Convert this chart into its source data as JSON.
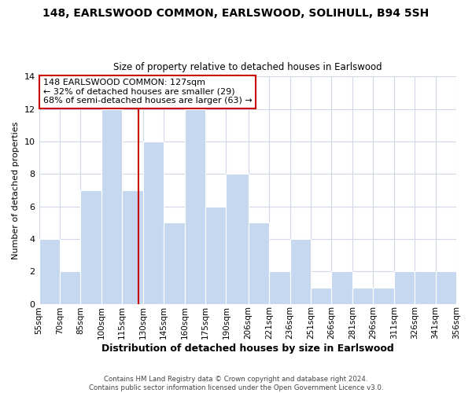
{
  "title": "148, EARLSWOOD COMMON, EARLSWOOD, SOLIHULL, B94 5SH",
  "subtitle": "Size of property relative to detached houses in Earlswood",
  "xlabel": "Distribution of detached houses by size in Earlswood",
  "ylabel": "Number of detached properties",
  "bar_edges": [
    55,
    70,
    85,
    100,
    115,
    130,
    145,
    160,
    175,
    190,
    206,
    221,
    236,
    251,
    266,
    281,
    296,
    311,
    326,
    341,
    356
  ],
  "bar_heights": [
    4,
    2,
    7,
    12,
    7,
    10,
    5,
    12,
    6,
    8,
    5,
    2,
    4,
    1,
    2,
    1,
    1,
    2,
    2,
    2
  ],
  "bar_color": "#c5d8f0",
  "bar_edge_color": "#ffffff",
  "property_line_x": 127,
  "property_line_color": "#cc0000",
  "annotation_text": "148 EARLSWOOD COMMON: 127sqm\n← 32% of detached houses are smaller (29)\n68% of semi-detached houses are larger (63) →",
  "annotation_box_color": "#ffffff",
  "annotation_box_edge_color": "#cc0000",
  "tick_labels": [
    "55sqm",
    "70sqm",
    "85sqm",
    "100sqm",
    "115sqm",
    "130sqm",
    "145sqm",
    "160sqm",
    "175sqm",
    "190sqm",
    "206sqm",
    "221sqm",
    "236sqm",
    "251sqm",
    "266sqm",
    "281sqm",
    "296sqm",
    "311sqm",
    "326sqm",
    "341sqm",
    "356sqm"
  ],
  "ylim": [
    0,
    14
  ],
  "yticks": [
    0,
    2,
    4,
    6,
    8,
    10,
    12,
    14
  ],
  "footer_text": "Contains HM Land Registry data © Crown copyright and database right 2024.\nContains public sector information licensed under the Open Government Licence v3.0.",
  "background_color": "#ffffff",
  "grid_color": "#d0d8e8"
}
